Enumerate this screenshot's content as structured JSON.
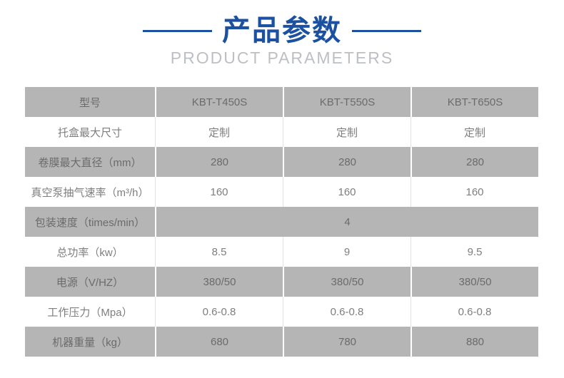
{
  "header": {
    "title": "产品参数",
    "subtitle": "PRODUCT PARAMETERS"
  },
  "colors": {
    "accent_blue": "#1b51a0",
    "row_gray": "#b5b5b5",
    "subtitle_gray": "#bcbfc3",
    "text_on_gray": "#6b6b6b",
    "text_on_white": "#7e7e7e",
    "divider_light": "#e2e2e2"
  },
  "table": {
    "rows": [
      {
        "label": "型号",
        "values": [
          "KBT-T450S",
          "KBT-T550S",
          "KBT-T650S"
        ]
      },
      {
        "label": "托盒最大尺寸",
        "values": [
          "定制",
          "定制",
          "定制"
        ]
      },
      {
        "label": "卷膜最大直径（mm）",
        "values": [
          "280",
          "280",
          "280"
        ]
      },
      {
        "label": "真空泵抽气速率（m³/h）",
        "values": [
          "160",
          "160",
          "160"
        ]
      },
      {
        "label": "包装速度（times/min）",
        "values": [
          "4"
        ]
      },
      {
        "label": "总功率（kw）",
        "values": [
          "8.5",
          "9",
          "9.5"
        ]
      },
      {
        "label": "电源（V/HZ）",
        "values": [
          "380/50",
          "380/50",
          "380/50"
        ]
      },
      {
        "label": "工作压力（Mpa）",
        "values": [
          "0.6-0.8",
          "0.6-0.8",
          "0.6-0.8"
        ]
      },
      {
        "label": "机器重量（kg）",
        "values": [
          "680",
          "780",
          "880"
        ]
      }
    ]
  }
}
